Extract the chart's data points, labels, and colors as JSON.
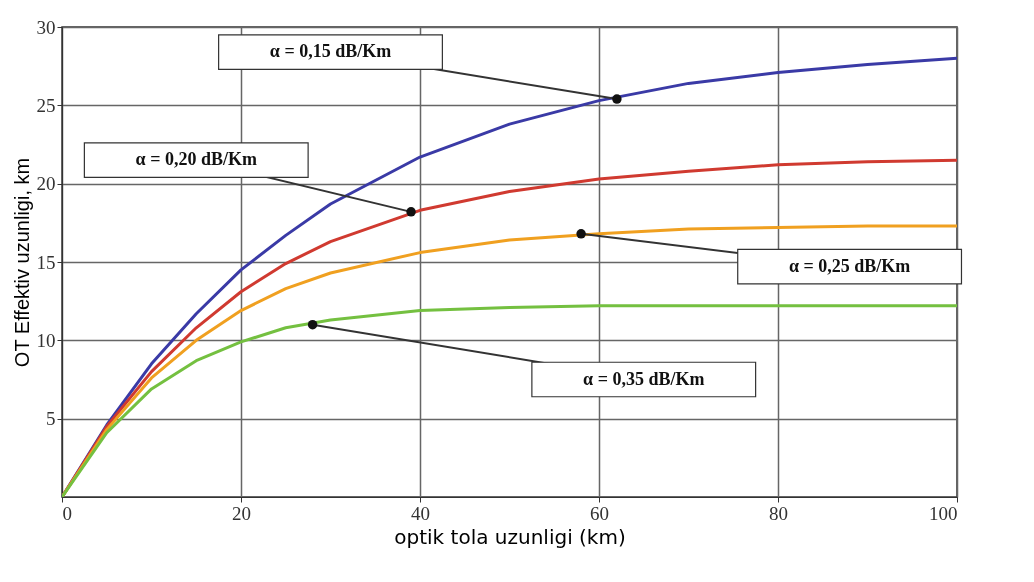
{
  "chart_data": {
    "type": "line",
    "xlabel": "optik tola uzunligi (km)",
    "ylabel": "OT Effektiv uzunligi, km",
    "x": [
      0,
      5,
      10,
      15,
      20,
      25,
      30,
      40,
      50,
      60,
      70,
      80,
      90,
      100
    ],
    "xlim": [
      0,
      100
    ],
    "xticks": [
      0,
      20,
      40,
      60,
      80,
      100
    ],
    "ylim": [
      0,
      30
    ],
    "yticks": [
      5,
      10,
      15,
      20,
      25,
      30
    ],
    "grid": true,
    "series": [
      {
        "color": "#3a3aa6",
        "values": [
          0,
          4.6,
          8.5,
          11.7,
          14.5,
          16.7,
          18.7,
          21.7,
          23.8,
          25.3,
          26.4,
          27.1,
          27.6,
          28.0
        ]
      },
      {
        "color": "#d03a30",
        "values": [
          0,
          4.5,
          8.0,
          10.8,
          13.1,
          14.9,
          16.3,
          18.3,
          19.5,
          20.3,
          20.8,
          21.2,
          21.4,
          21.5
        ]
      },
      {
        "color": "#f0a020",
        "values": [
          0,
          4.3,
          7.6,
          10.0,
          11.9,
          13.3,
          14.3,
          15.6,
          16.4,
          16.8,
          17.1,
          17.2,
          17.3,
          17.3
        ]
      },
      {
        "color": "#74c040",
        "values": [
          0,
          4.1,
          6.9,
          8.7,
          9.9,
          10.8,
          11.3,
          11.9,
          12.1,
          12.2,
          12.2,
          12.2,
          12.2,
          12.2
        ]
      }
    ],
    "annotations": [
      {
        "text": "α = 0,15 dB/Km",
        "x": 62,
        "y": 25.4
      },
      {
        "text": "α = 0,20 dB/Km",
        "x": 39,
        "y": 18.2
      },
      {
        "text": "α = 0,25 dB/Km",
        "x": 58,
        "y": 16.8
      },
      {
        "text": "α = 0,35 dB/Km",
        "x": 28,
        "y": 11
      }
    ]
  }
}
